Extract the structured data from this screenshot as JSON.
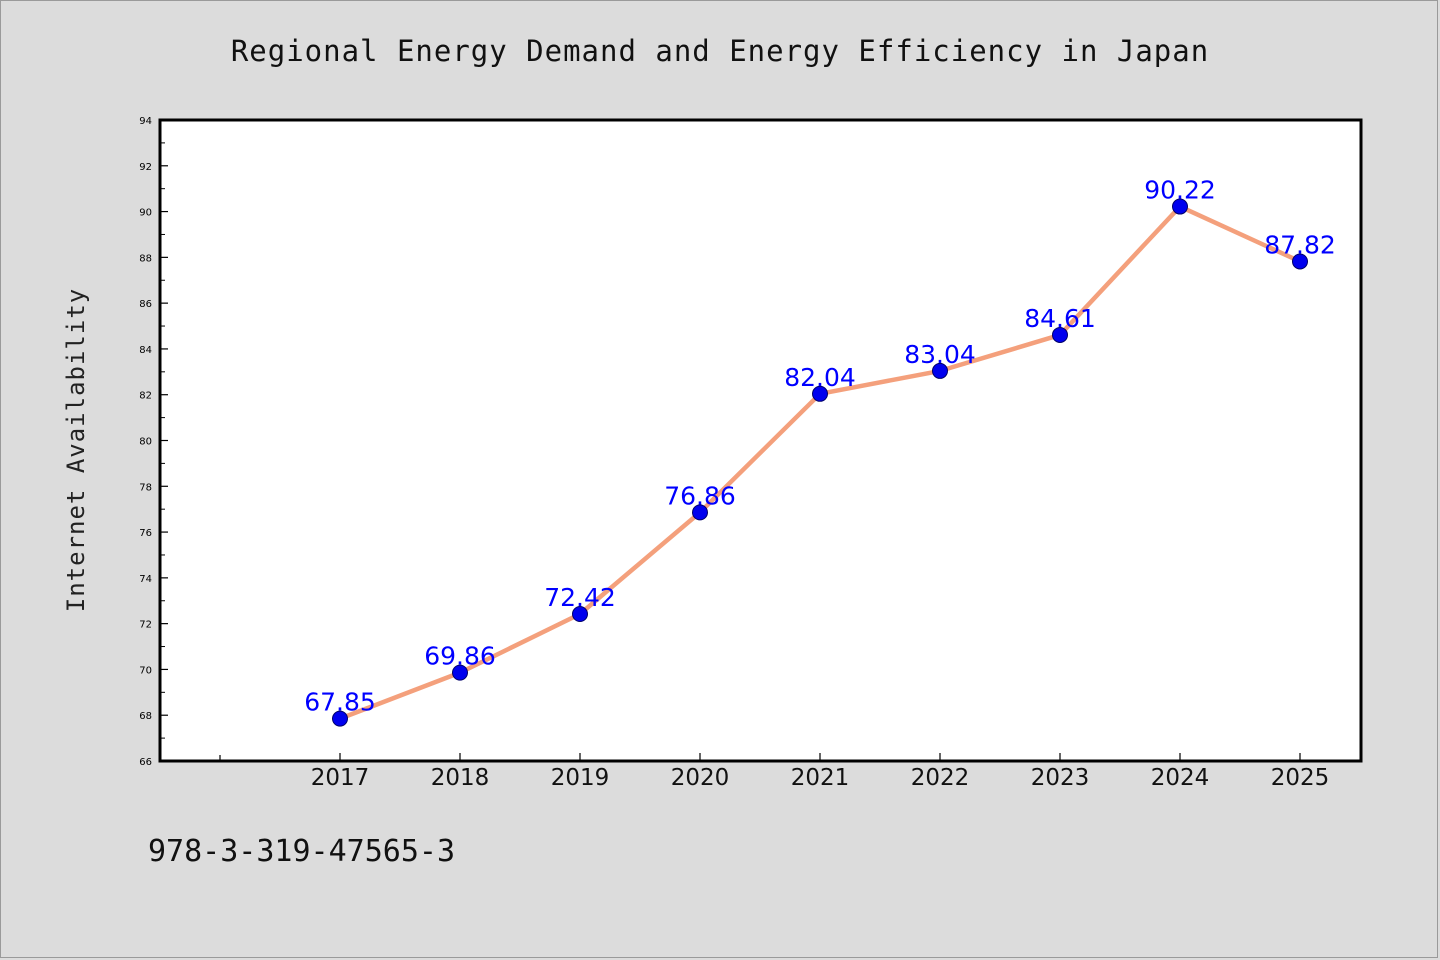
{
  "chart_data": {
    "type": "line",
    "title": "Regional Energy Demand and Energy Efficiency in Japan",
    "xlabel": "",
    "ylabel": "Internet Availability",
    "categories": [
      "2017",
      "2018",
      "2019",
      "2020",
      "2021",
      "2022",
      "2023",
      "2024",
      "2025"
    ],
    "series": [
      {
        "values": [
          67.85,
          69.86,
          72.42,
          76.86,
          82.04,
          83.04,
          84.61,
          90.22,
          87.82
        ],
        "labels": [
          "67.85",
          "69.86",
          "72.42",
          "76.86",
          "82.04",
          "83.04",
          "84.61",
          "90.22",
          "87.82"
        ]
      }
    ],
    "ylim": [
      66,
      94
    ],
    "yticks": [
      "66",
      "68",
      "70",
      "72",
      "74",
      "76",
      "78",
      "80",
      "82",
      "84",
      "86",
      "88",
      "90",
      "92",
      "94"
    ],
    "grid": false,
    "line_color": "#f4a07c",
    "marker_color": "#0000ee",
    "label_color": "#0000ff"
  },
  "footer": {
    "isbn": "978-3-319-47565-3"
  }
}
